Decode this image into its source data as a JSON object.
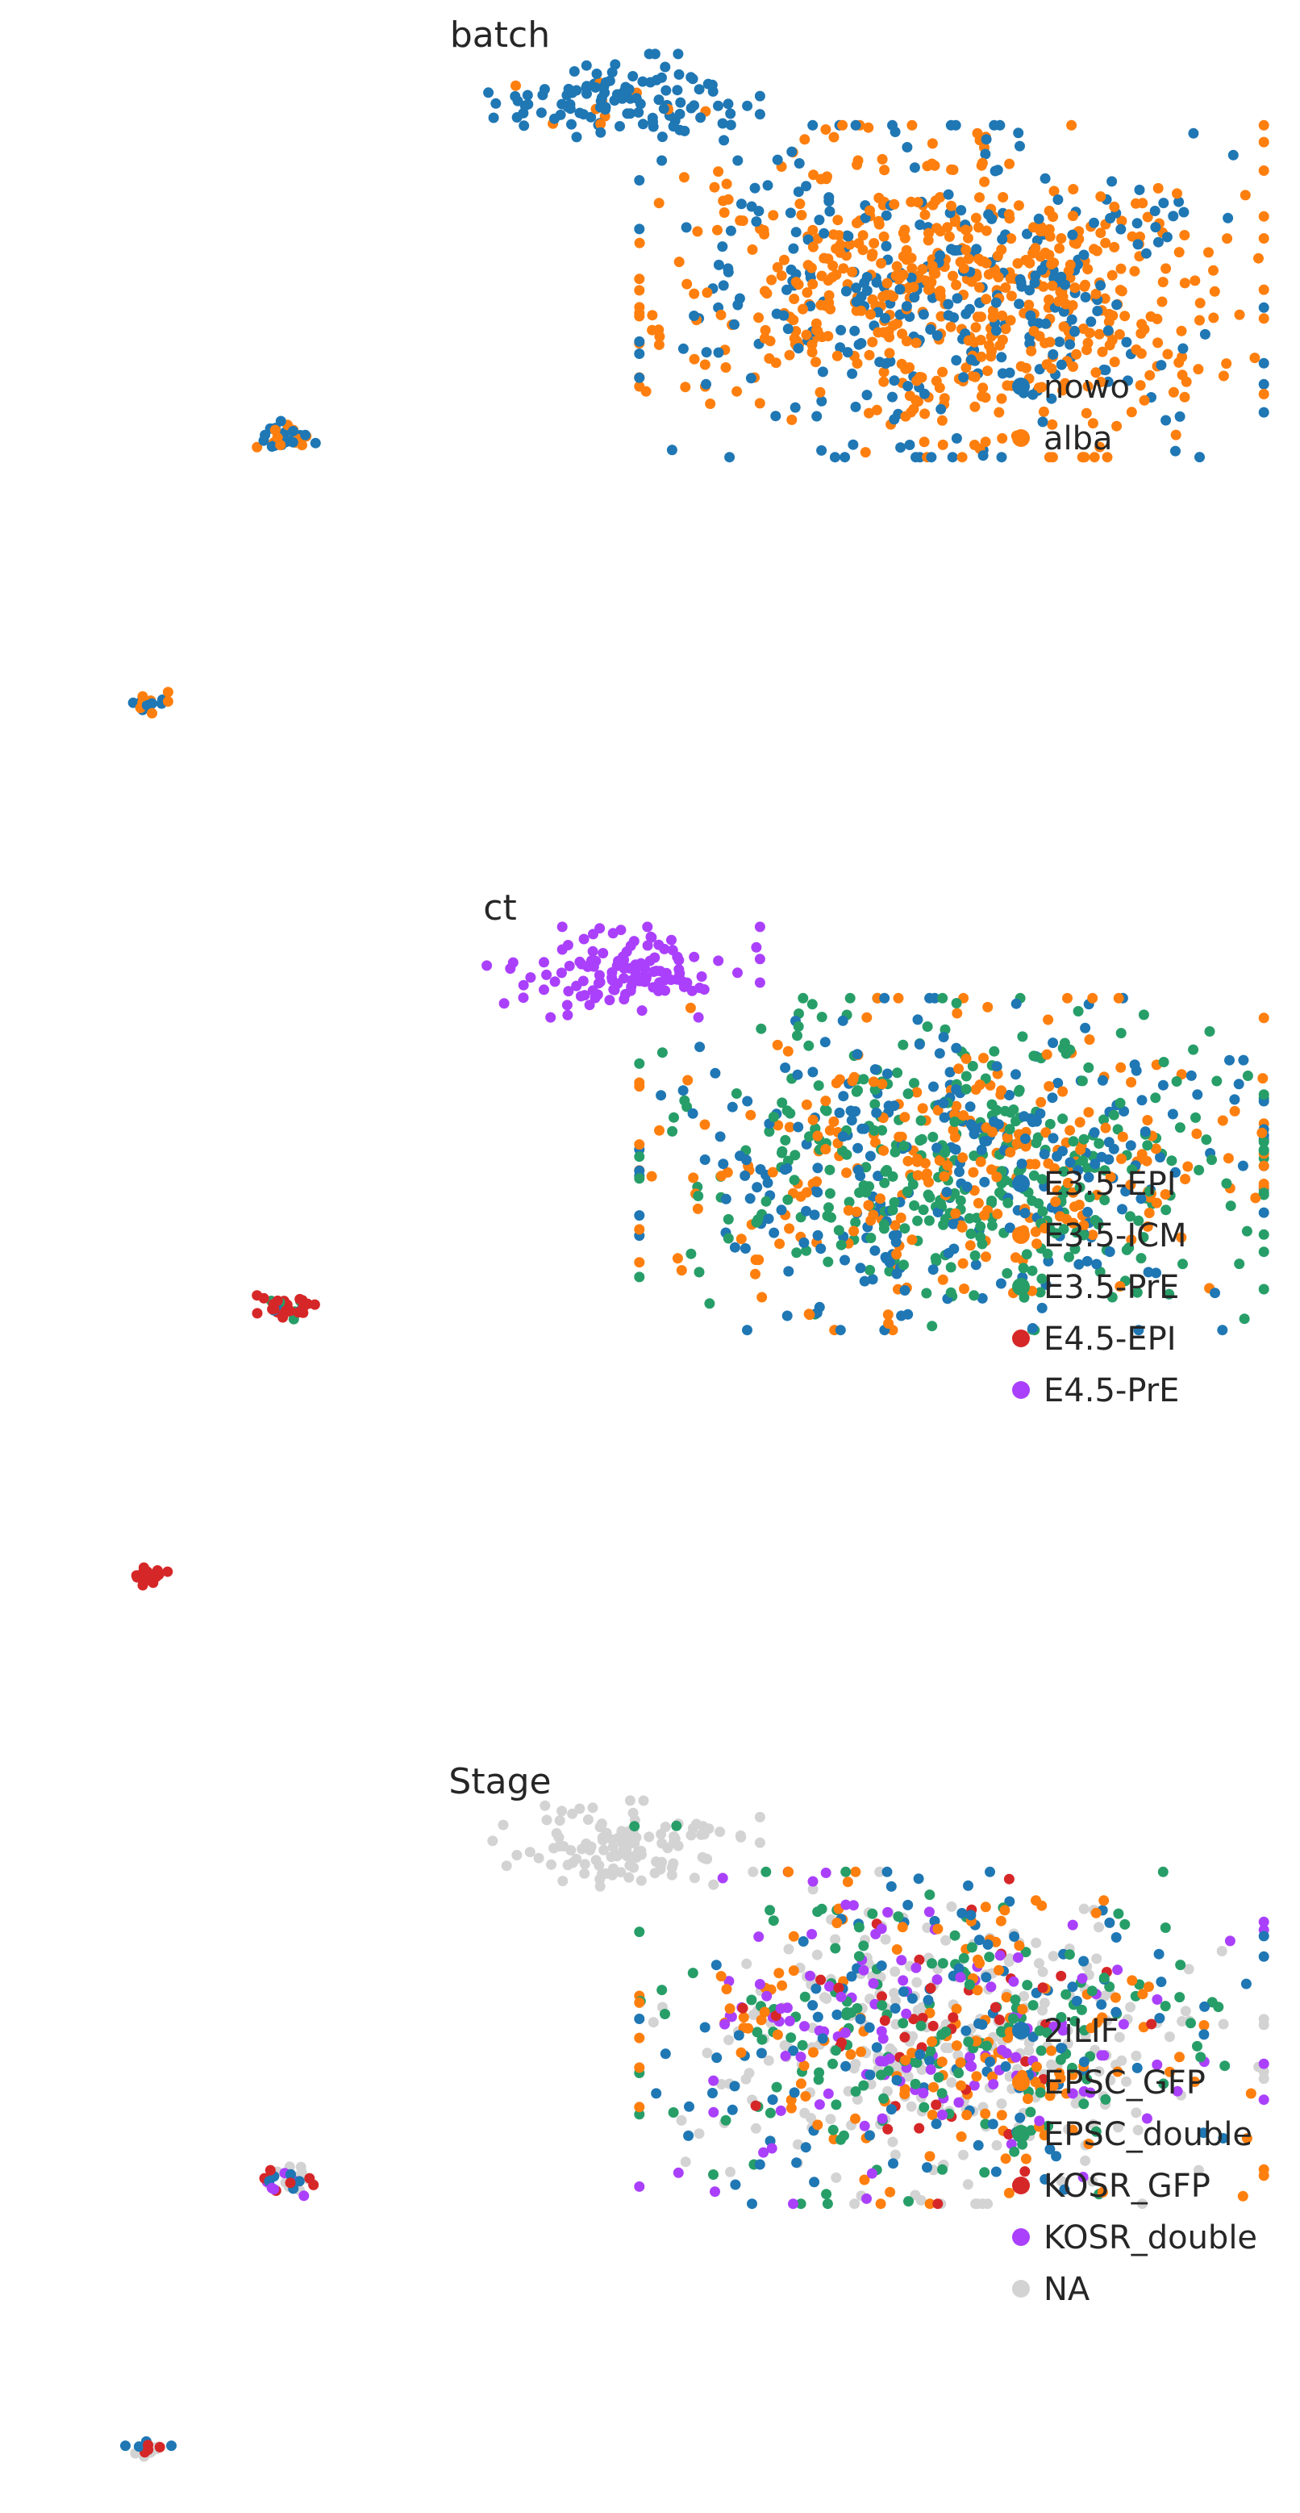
{
  "chart_data": [
    {
      "type": "scatter",
      "title": "batch",
      "xlabel": "",
      "ylabel": "",
      "grid": false,
      "legend_position": "right",
      "categories": [
        {
          "name": "nowo",
          "color": "#1f77b4"
        },
        {
          "name": "alba",
          "color": "#ff7f0e"
        }
      ],
      "clusters": [
        {
          "center": [
            6.3,
            9.2
          ],
          "spread": [
            0.7,
            0.3
          ],
          "n": 120,
          "mix": [
            0.92,
            0.08
          ]
        },
        {
          "center": [
            10.0,
            6.4
          ],
          "spread": [
            1.6,
            1.1
          ],
          "n": 900,
          "mix": [
            0.35,
            0.65
          ]
        },
        {
          "center": [
            2.5,
            4.3
          ],
          "spread": [
            0.15,
            0.1
          ],
          "n": 30,
          "mix": [
            0.6,
            0.4
          ]
        },
        {
          "center": [
            0.95,
            0.4
          ],
          "spread": [
            0.12,
            0.07
          ],
          "n": 20,
          "mix": [
            0.5,
            0.5
          ]
        }
      ]
    },
    {
      "type": "scatter",
      "title": "ct",
      "xlabel": "",
      "ylabel": "",
      "grid": false,
      "legend_position": "right",
      "categories": [
        {
          "name": "E3.5-EPI",
          "color": "#1f77b4"
        },
        {
          "name": "E3.5-ICM",
          "color": "#ff7f0e"
        },
        {
          "name": "E3.5-PrE",
          "color": "#279e68"
        },
        {
          "name": "E4.5-EPI",
          "color": "#d62728"
        },
        {
          "name": "E4.5-PrE",
          "color": "#aa40fc"
        }
      ],
      "clusters": [
        {
          "center": [
            6.3,
            9.2
          ],
          "spread": [
            0.7,
            0.3
          ],
          "n": 120,
          "mix": [
            0,
            0,
            0,
            0,
            1
          ]
        },
        {
          "center": [
            10.0,
            6.4
          ],
          "spread": [
            1.6,
            1.1
          ],
          "n": 900,
          "mix": [
            0.3,
            0.3,
            0.4,
            0,
            0
          ]
        },
        {
          "center": [
            2.5,
            4.3
          ],
          "spread": [
            0.15,
            0.1
          ],
          "n": 30,
          "mix": [
            0.1,
            0,
            0.15,
            0.75,
            0
          ]
        },
        {
          "center": [
            0.95,
            0.4
          ],
          "spread": [
            0.12,
            0.07
          ],
          "n": 20,
          "mix": [
            0,
            0,
            0,
            1,
            0
          ]
        }
      ]
    },
    {
      "type": "scatter",
      "title": "Stage",
      "xlabel": "",
      "ylabel": "",
      "grid": false,
      "legend_position": "right",
      "categories": [
        {
          "name": "2iLIF",
          "color": "#1f77b4"
        },
        {
          "name": "EPSC_GFP",
          "color": "#ff7f0e"
        },
        {
          "name": "EPSC_double",
          "color": "#279e68"
        },
        {
          "name": "KOSR_GFP",
          "color": "#d62728"
        },
        {
          "name": "KOSR_double",
          "color": "#aa40fc"
        },
        {
          "name": "NA",
          "color": "#d3d3d3"
        }
      ],
      "clusters": [
        {
          "center": [
            6.3,
            9.2
          ],
          "spread": [
            0.7,
            0.3
          ],
          "n": 120,
          "mix": [
            0,
            0,
            0.02,
            0,
            0,
            0.98
          ]
        },
        {
          "center": [
            10.0,
            6.4
          ],
          "spread": [
            1.6,
            1.1
          ],
          "n": 900,
          "mix": [
            0.14,
            0.17,
            0.19,
            0.05,
            0.14,
            0.31
          ]
        },
        {
          "center": [
            2.5,
            4.3
          ],
          "spread": [
            0.15,
            0.1
          ],
          "n": 30,
          "mix": [
            0.2,
            0,
            0,
            0.2,
            0.2,
            0.4
          ]
        },
        {
          "center": [
            0.95,
            0.4
          ],
          "spread": [
            0.12,
            0.07
          ],
          "n": 20,
          "mix": [
            0.2,
            0,
            0,
            0.2,
            0,
            0.6
          ]
        }
      ]
    }
  ]
}
